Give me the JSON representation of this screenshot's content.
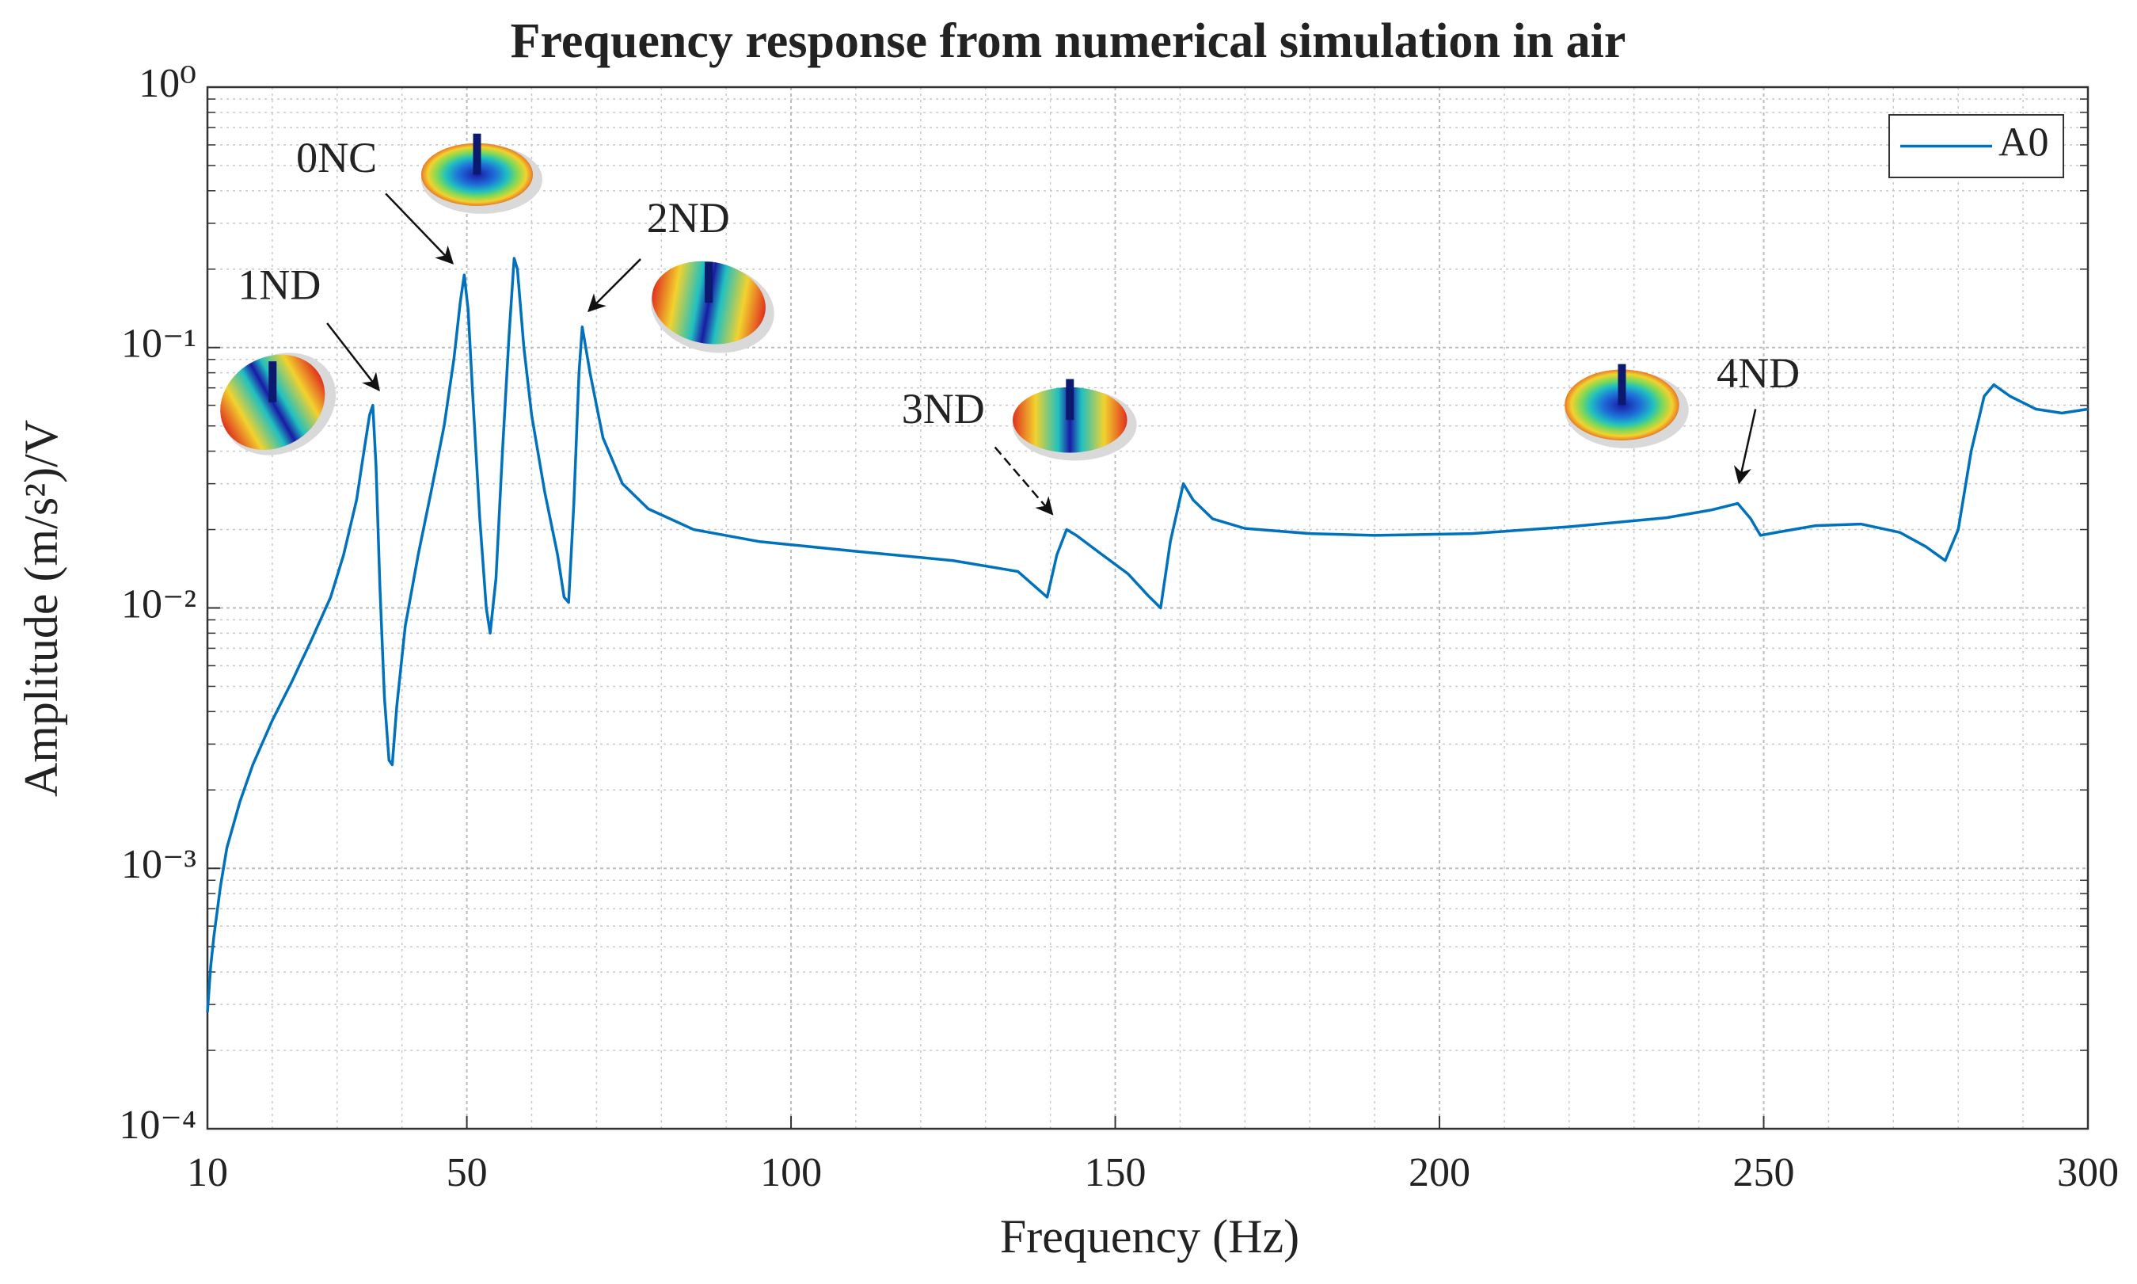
{
  "chart_data": {
    "type": "line",
    "title": "Frequency response from numerical simulation in air",
    "x_label": "Frequency (Hz)",
    "y_label": "Amplitude (m/s²)/V",
    "xlim": [
      10,
      300
    ],
    "xticks": [
      10,
      50,
      100,
      150,
      200,
      250,
      300
    ],
    "ylim": [
      0.0001,
      1
    ],
    "yticks": [
      {
        "value": 0.0001,
        "label": "10⁻⁴"
      },
      {
        "value": 0.001,
        "label": "10⁻³"
      },
      {
        "value": 0.01,
        "label": "10⁻²"
      },
      {
        "value": 0.1,
        "label": "10⁻¹"
      },
      {
        "value": 1,
        "label": "10⁰"
      }
    ],
    "log_y": true,
    "grid": true,
    "minor_grid": true,
    "legend": "upper right",
    "x": [
      10,
      10.5,
      11,
      12,
      13,
      15,
      17,
      20,
      23,
      26,
      29,
      31,
      33,
      34,
      35,
      35.5,
      36,
      36.6,
      37.3,
      38,
      38.5,
      39.2,
      40.5,
      42.5,
      44.5,
      46.5,
      48,
      49,
      49.6,
      50.2,
      51,
      52,
      53,
      53.6,
      54.5,
      55.5,
      56.5,
      57.3,
      57.8,
      58.8,
      60,
      62,
      64,
      65,
      65.7,
      66.5,
      67.3,
      67.8,
      69,
      71,
      74,
      78,
      85,
      95,
      110,
      125,
      135,
      139.5,
      141,
      142.5,
      144,
      148,
      152,
      155,
      157,
      158.5,
      160.5,
      162,
      165,
      170,
      180,
      190,
      205,
      220,
      235,
      242,
      246,
      248,
      249.5,
      252,
      258,
      265,
      271,
      275,
      278,
      280,
      282,
      284,
      285.5,
      288,
      292,
      296,
      300
    ],
    "series": [
      {
        "name": "A0",
        "color": "#0072bd",
        "values": [
          0.00028,
          0.00042,
          0.00055,
          0.00085,
          0.0012,
          0.0018,
          0.0025,
          0.0037,
          0.0052,
          0.0075,
          0.011,
          0.016,
          0.026,
          0.038,
          0.055,
          0.06,
          0.035,
          0.012,
          0.0045,
          0.0026,
          0.0025,
          0.0042,
          0.0085,
          0.016,
          0.028,
          0.05,
          0.09,
          0.15,
          0.19,
          0.14,
          0.06,
          0.022,
          0.01,
          0.008,
          0.013,
          0.04,
          0.11,
          0.22,
          0.2,
          0.1,
          0.055,
          0.028,
          0.016,
          0.011,
          0.0105,
          0.025,
          0.08,
          0.12,
          0.08,
          0.045,
          0.03,
          0.024,
          0.02,
          0.018,
          0.0165,
          0.0152,
          0.0138,
          0.011,
          0.016,
          0.02,
          0.019,
          0.016,
          0.0135,
          0.0112,
          0.01,
          0.018,
          0.03,
          0.026,
          0.022,
          0.0202,
          0.0193,
          0.019,
          0.0193,
          0.0205,
          0.0222,
          0.0238,
          0.0252,
          0.022,
          0.019,
          0.0195,
          0.0207,
          0.021,
          0.0195,
          0.0172,
          0.0152,
          0.02,
          0.04,
          0.065,
          0.072,
          0.065,
          0.058,
          0.056,
          0.058
        ]
      }
    ],
    "annotations": [
      "1ND",
      "0NC",
      "2ND",
      "3ND",
      "4ND"
    ]
  }
}
